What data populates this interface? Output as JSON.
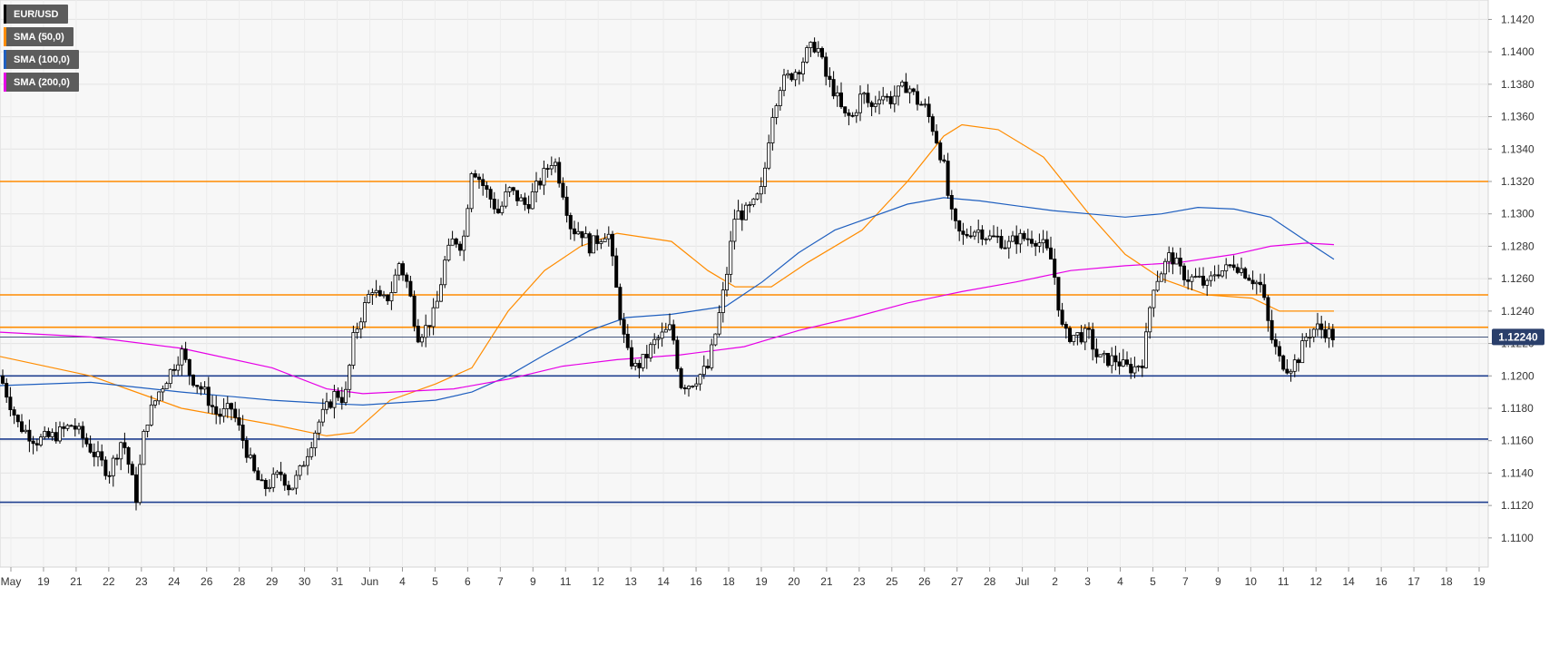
{
  "legend": [
    {
      "label": "EUR/USD",
      "color": "#000000"
    },
    {
      "label": "SMA (50,0)",
      "color": "#ff8c00"
    },
    {
      "label": "SMA (100,0)",
      "color": "#1f5fbf"
    },
    {
      "label": "SMA (200,0)",
      "color": "#e600e6"
    }
  ],
  "price_badge": {
    "value": "1.12240",
    "color": "#2a3f6b"
  },
  "chart_data": {
    "type": "candlestick",
    "symbol": "EUR/USD",
    "ylim": [
      1.1082,
      1.1432
    ],
    "y_ticks": [
      "1.1100",
      "1.1120",
      "1.1140",
      "1.1160",
      "1.1180",
      "1.1200",
      "1.1220",
      "1.1240",
      "1.1260",
      "1.1280",
      "1.1300",
      "1.1320",
      "1.1340",
      "1.1360",
      "1.1380",
      "1.1400",
      "1.1420"
    ],
    "x_tick_labels": [
      "May",
      "19",
      "21",
      "22",
      "23",
      "24",
      "26",
      "28",
      "29",
      "30",
      "31",
      "Jun",
      "4",
      "5",
      "6",
      "7",
      "9",
      "11",
      "12",
      "13",
      "14",
      "16",
      "18",
      "19",
      "20",
      "21",
      "23",
      "25",
      "26",
      "27",
      "28",
      "Jul",
      "2",
      "3",
      "4",
      "5",
      "7",
      "9",
      "10",
      "11",
      "12",
      "14",
      "16",
      "17",
      "18",
      "19"
    ],
    "grid": true,
    "last_price": 1.1224,
    "horizontal_levels": [
      {
        "value": 1.132,
        "color": "#ff8c00"
      },
      {
        "value": 1.125,
        "color": "#ff8c00"
      },
      {
        "value": 1.123,
        "color": "#ff8c00"
      },
      {
        "value": 1.12,
        "color": "#1f3f8f"
      },
      {
        "value": 1.1161,
        "color": "#1f3f8f"
      },
      {
        "value": 1.1122,
        "color": "#1f3f8f"
      }
    ],
    "close_anchors": [
      [
        0,
        1.12
      ],
      [
        20,
        1.117
      ],
      [
        40,
        1.116
      ],
      [
        60,
        1.1163
      ],
      [
        80,
        1.117
      ],
      [
        100,
        1.1155
      ],
      [
        120,
        1.114
      ],
      [
        135,
        1.1162
      ],
      [
        150,
        1.1125
      ],
      [
        160,
        1.117
      ],
      [
        175,
        1.119
      ],
      [
        190,
        1.1205
      ],
      [
        200,
        1.1215
      ],
      [
        210,
        1.12
      ],
      [
        225,
        1.119
      ],
      [
        240,
        1.1175
      ],
      [
        255,
        1.118
      ],
      [
        265,
        1.1165
      ],
      [
        280,
        1.114
      ],
      [
        290,
        1.113
      ],
      [
        300,
        1.1135
      ],
      [
        310,
        1.114
      ],
      [
        320,
        1.113
      ],
      [
        330,
        1.114
      ],
      [
        340,
        1.1155
      ],
      [
        350,
        1.117
      ],
      [
        360,
        1.118
      ],
      [
        370,
        1.119
      ],
      [
        380,
        1.1185
      ],
      [
        390,
        1.1225
      ],
      [
        400,
        1.124
      ],
      [
        410,
        1.1255
      ],
      [
        420,
        1.1245
      ],
      [
        430,
        1.125
      ],
      [
        440,
        1.127
      ],
      [
        450,
        1.1255
      ],
      [
        460,
        1.1225
      ],
      [
        470,
        1.123
      ],
      [
        480,
        1.124
      ],
      [
        490,
        1.127
      ],
      [
        500,
        1.1285
      ],
      [
        510,
        1.128
      ],
      [
        520,
        1.133
      ],
      [
        530,
        1.132
      ],
      [
        540,
        1.131
      ],
      [
        550,
        1.13
      ],
      [
        560,
        1.1315
      ],
      [
        570,
        1.131
      ],
      [
        580,
        1.1305
      ],
      [
        590,
        1.1315
      ],
      [
        600,
        1.1325
      ],
      [
        610,
        1.1335
      ],
      [
        620,
        1.1315
      ],
      [
        630,
        1.129
      ],
      [
        640,
        1.129
      ],
      [
        650,
        1.128
      ],
      [
        660,
        1.1285
      ],
      [
        670,
        1.129
      ],
      [
        680,
        1.125
      ],
      [
        690,
        1.1215
      ],
      [
        700,
        1.1205
      ],
      [
        710,
        1.121
      ],
      [
        720,
        1.122
      ],
      [
        730,
        1.1225
      ],
      [
        740,
        1.123
      ],
      [
        750,
        1.1195
      ],
      [
        760,
        1.1195
      ],
      [
        770,
        1.12
      ],
      [
        780,
        1.1205
      ],
      [
        790,
        1.123
      ],
      [
        800,
        1.126
      ],
      [
        810,
        1.13
      ],
      [
        820,
        1.13
      ],
      [
        830,
        1.1305
      ],
      [
        840,
        1.1315
      ],
      [
        850,
        1.136
      ],
      [
        860,
        1.138
      ],
      [
        870,
        1.1385
      ],
      [
        880,
        1.139
      ],
      [
        890,
        1.14
      ],
      [
        900,
        1.1405
      ],
      [
        910,
        1.1385
      ],
      [
        920,
        1.1375
      ],
      [
        930,
        1.136
      ],
      [
        940,
        1.136
      ],
      [
        950,
        1.1375
      ],
      [
        960,
        1.1365
      ],
      [
        970,
        1.1375
      ],
      [
        980,
        1.137
      ],
      [
        990,
        1.1375
      ],
      [
        1000,
        1.138
      ],
      [
        1010,
        1.137
      ],
      [
        1020,
        1.1365
      ],
      [
        1030,
        1.135
      ],
      [
        1040,
        1.133
      ],
      [
        1045,
        1.131
      ],
      [
        1050,
        1.1295
      ],
      [
        1060,
        1.1285
      ],
      [
        1070,
        1.129
      ],
      [
        1080,
        1.129
      ],
      [
        1090,
        1.1285
      ],
      [
        1100,
        1.1285
      ],
      [
        1110,
        1.128
      ],
      [
        1120,
        1.1285
      ],
      [
        1130,
        1.1285
      ],
      [
        1140,
        1.1285
      ],
      [
        1150,
        1.128
      ],
      [
        1160,
        1.127
      ],
      [
        1170,
        1.123
      ],
      [
        1175,
        1.1225
      ],
      [
        1190,
        1.1225
      ],
      [
        1200,
        1.1225
      ],
      [
        1210,
        1.121
      ],
      [
        1220,
        1.121
      ],
      [
        1230,
        1.121
      ],
      [
        1240,
        1.1205
      ],
      [
        1250,
        1.1205
      ],
      [
        1260,
        1.121
      ],
      [
        1270,
        1.1255
      ],
      [
        1280,
        1.1265
      ],
      [
        1290,
        1.1275
      ],
      [
        1300,
        1.1265
      ],
      [
        1310,
        1.126
      ],
      [
        1320,
        1.126
      ],
      [
        1330,
        1.1255
      ],
      [
        1340,
        1.1265
      ],
      [
        1350,
        1.1265
      ],
      [
        1360,
        1.127
      ],
      [
        1370,
        1.1265
      ],
      [
        1380,
        1.126
      ],
      [
        1390,
        1.1255
      ],
      [
        1400,
        1.1225
      ],
      [
        1410,
        1.121
      ],
      [
        1420,
        1.1205
      ],
      [
        1430,
        1.121
      ],
      [
        1440,
        1.1225
      ],
      [
        1450,
        1.123
      ],
      [
        1460,
        1.1228
      ],
      [
        1470,
        1.1224
      ]
    ],
    "series": [
      {
        "name": "SMA (50,0)",
        "color": "#ff8c00",
        "points": [
          [
            0,
            1.1212
          ],
          [
            100,
            1.12
          ],
          [
            200,
            1.118
          ],
          [
            300,
            1.117
          ],
          [
            360,
            1.1163
          ],
          [
            390,
            1.1165
          ],
          [
            430,
            1.1185
          ],
          [
            480,
            1.1195
          ],
          [
            520,
            1.1205
          ],
          [
            560,
            1.124
          ],
          [
            600,
            1.1265
          ],
          [
            640,
            1.128
          ],
          [
            680,
            1.1288
          ],
          [
            740,
            1.1283
          ],
          [
            780,
            1.1265
          ],
          [
            810,
            1.1255
          ],
          [
            850,
            1.1255
          ],
          [
            890,
            1.127
          ],
          [
            950,
            1.129
          ],
          [
            1000,
            1.132
          ],
          [
            1040,
            1.1348
          ],
          [
            1060,
            1.1355
          ],
          [
            1100,
            1.1352
          ],
          [
            1150,
            1.1335
          ],
          [
            1200,
            1.13
          ],
          [
            1240,
            1.1275
          ],
          [
            1280,
            1.126
          ],
          [
            1330,
            1.125
          ],
          [
            1380,
            1.1248
          ],
          [
            1410,
            1.124
          ],
          [
            1440,
            1.124
          ],
          [
            1470,
            1.124
          ]
        ]
      },
      {
        "name": "SMA (100,0)",
        "color": "#1f5fbf",
        "points": [
          [
            0,
            1.1194
          ],
          [
            100,
            1.1196
          ],
          [
            200,
            1.119
          ],
          [
            300,
            1.1185
          ],
          [
            360,
            1.1183
          ],
          [
            400,
            1.1182
          ],
          [
            480,
            1.1185
          ],
          [
            520,
            1.119
          ],
          [
            560,
            1.12
          ],
          [
            600,
            1.1213
          ],
          [
            650,
            1.1228
          ],
          [
            690,
            1.1236
          ],
          [
            740,
            1.1238
          ],
          [
            800,
            1.1243
          ],
          [
            840,
            1.1258
          ],
          [
            880,
            1.1276
          ],
          [
            920,
            1.129
          ],
          [
            960,
            1.1298
          ],
          [
            1000,
            1.1306
          ],
          [
            1040,
            1.131
          ],
          [
            1080,
            1.1308
          ],
          [
            1120,
            1.1305
          ],
          [
            1160,
            1.1302
          ],
          [
            1200,
            1.13
          ],
          [
            1240,
            1.1298
          ],
          [
            1280,
            1.13
          ],
          [
            1320,
            1.1304
          ],
          [
            1360,
            1.1303
          ],
          [
            1400,
            1.1298
          ],
          [
            1440,
            1.1283
          ],
          [
            1470,
            1.1272
          ]
        ]
      },
      {
        "name": "SMA (200,0)",
        "color": "#e600e6",
        "points": [
          [
            0,
            1.1227
          ],
          [
            100,
            1.1224
          ],
          [
            200,
            1.1217
          ],
          [
            300,
            1.1205
          ],
          [
            360,
            1.1192
          ],
          [
            400,
            1.1189
          ],
          [
            500,
            1.1192
          ],
          [
            560,
            1.1198
          ],
          [
            620,
            1.1206
          ],
          [
            680,
            1.121
          ],
          [
            750,
            1.1213
          ],
          [
            820,
            1.1218
          ],
          [
            880,
            1.1228
          ],
          [
            940,
            1.1236
          ],
          [
            1000,
            1.1245
          ],
          [
            1060,
            1.1252
          ],
          [
            1120,
            1.1258
          ],
          [
            1180,
            1.1265
          ],
          [
            1240,
            1.1268
          ],
          [
            1300,
            1.127
          ],
          [
            1360,
            1.1275
          ],
          [
            1400,
            1.128
          ],
          [
            1440,
            1.1282
          ],
          [
            1470,
            1.1281
          ]
        ]
      }
    ]
  }
}
